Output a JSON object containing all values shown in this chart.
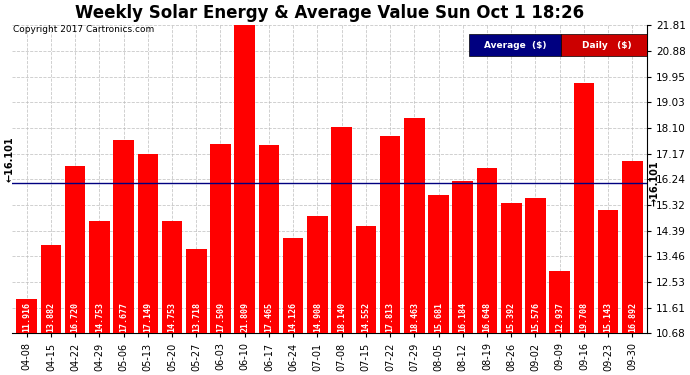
{
  "title": "Weekly Solar Energy & Average Value Sun Oct 1 18:26",
  "copyright": "Copyright 2017 Cartronics.com",
  "categories": [
    "04-08",
    "04-15",
    "04-22",
    "04-29",
    "05-06",
    "05-13",
    "05-20",
    "05-27",
    "06-03",
    "06-10",
    "06-17",
    "06-24",
    "07-01",
    "07-08",
    "07-15",
    "07-22",
    "07-29",
    "08-05",
    "08-12",
    "08-19",
    "08-26",
    "09-02",
    "09-09",
    "09-16",
    "09-23",
    "09-30"
  ],
  "values": [
    11.916,
    13.882,
    16.72,
    14.753,
    17.677,
    17.149,
    14.753,
    13.718,
    17.509,
    21.809,
    17.465,
    14.126,
    14.908,
    18.14,
    14.552,
    17.813,
    18.463,
    15.681,
    16.184,
    16.648,
    15.392,
    15.576,
    12.937,
    19.708,
    15.143,
    16.892
  ],
  "average_value": 16.101,
  "y_min": 10.68,
  "y_max": 21.81,
  "y_tick_values": [
    10.68,
    11.61,
    12.53,
    13.46,
    14.39,
    15.32,
    16.24,
    17.17,
    18.1,
    19.03,
    19.95,
    20.88,
    21.81
  ],
  "bar_color": "#ff0000",
  "avg_line_color": "#000080",
  "background_color": "#ffffff",
  "plot_bg_color": "#ffffff",
  "grid_color": "#bbbbbb",
  "title_fontsize": 12,
  "tick_fontsize": 7.5,
  "bar_label_fontsize": 6,
  "avg_label_fontsize": 7,
  "legend_avg_bg": "#000080",
  "legend_daily_bg": "#cc0000",
  "legend_text_avg": "Average  ($)",
  "legend_text_daily": "Daily   ($)"
}
